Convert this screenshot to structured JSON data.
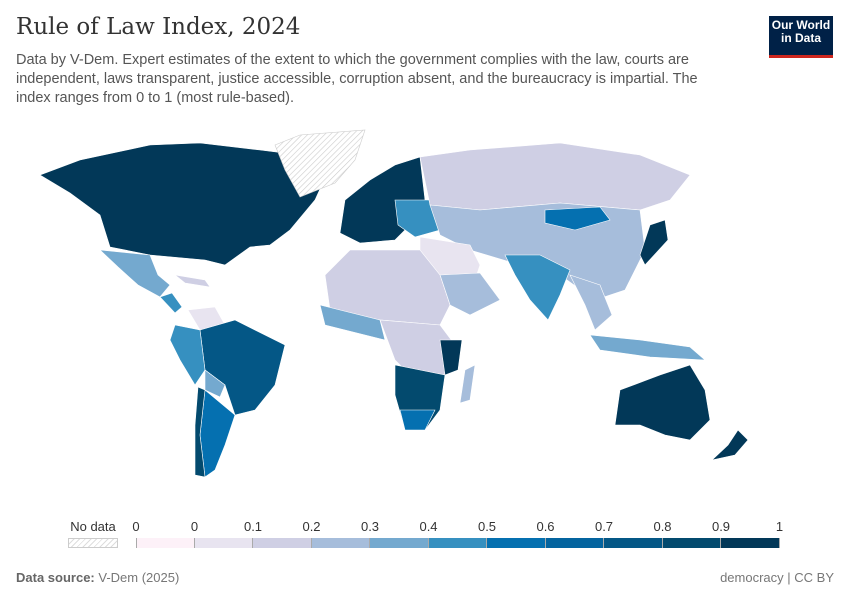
{
  "header": {
    "title": "Rule of Law Index, 2024",
    "subtitle": "Data by V-Dem. Expert estimates of the extent to which the government complies with the law, courts are independent, laws transparent, justice accessible, corruption absent, and the bureaucracy is impartial. The index ranges from 0 to 1 (most rule-based).",
    "logo": "Our World in Data"
  },
  "legend": {
    "no_data_label": "No data",
    "tick_labels": [
      "0",
      "0",
      "0.1",
      "0.2",
      "0.3",
      "0.4",
      "0.5",
      "0.6",
      "0.7",
      "0.8",
      "0.9",
      "1"
    ],
    "bin_colors": [
      "#fdf1f8",
      "#e8e4f0",
      "#cfcfe4",
      "#a6bddb",
      "#74a9cf",
      "#3690c0",
      "#0570b0",
      "#04649f",
      "#045786",
      "#034a6e",
      "#023858"
    ]
  },
  "footer": {
    "source_label": "Data source:",
    "source_value": "V-Dem (2025)",
    "license": "democracy | CC BY"
  }
}
